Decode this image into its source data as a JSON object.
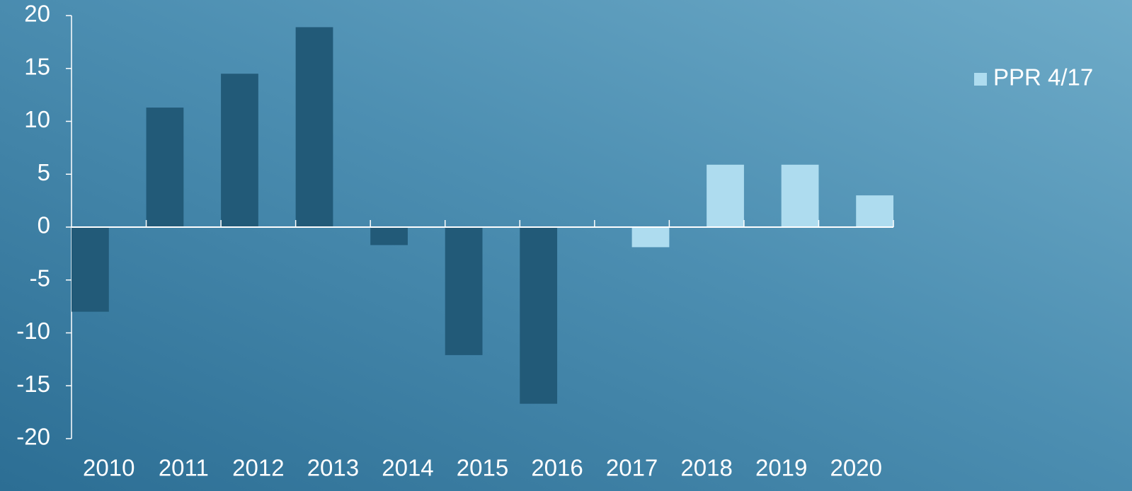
{
  "chart_data": {
    "type": "bar",
    "categories": [
      "2010",
      "2011",
      "2012",
      "2013",
      "2014",
      "2015",
      "2016",
      "2017",
      "2018",
      "2019",
      "2020"
    ],
    "series": [
      {
        "color": "#225a78",
        "values": [
          -8,
          11.3,
          14.5,
          18.9,
          -1.7,
          -12.1,
          -16.7,
          null,
          null,
          null,
          null
        ]
      },
      {
        "name": "PPR 4/17",
        "color": "#aedcef",
        "values": [
          null,
          null,
          null,
          null,
          null,
          null,
          null,
          -1.9,
          5.9,
          5.9,
          3
        ]
      }
    ],
    "ylim": [
      -20,
      20
    ],
    "yticks": [
      -20,
      -15,
      -10,
      -5,
      0,
      5,
      10,
      15,
      20
    ],
    "legend": "right"
  }
}
